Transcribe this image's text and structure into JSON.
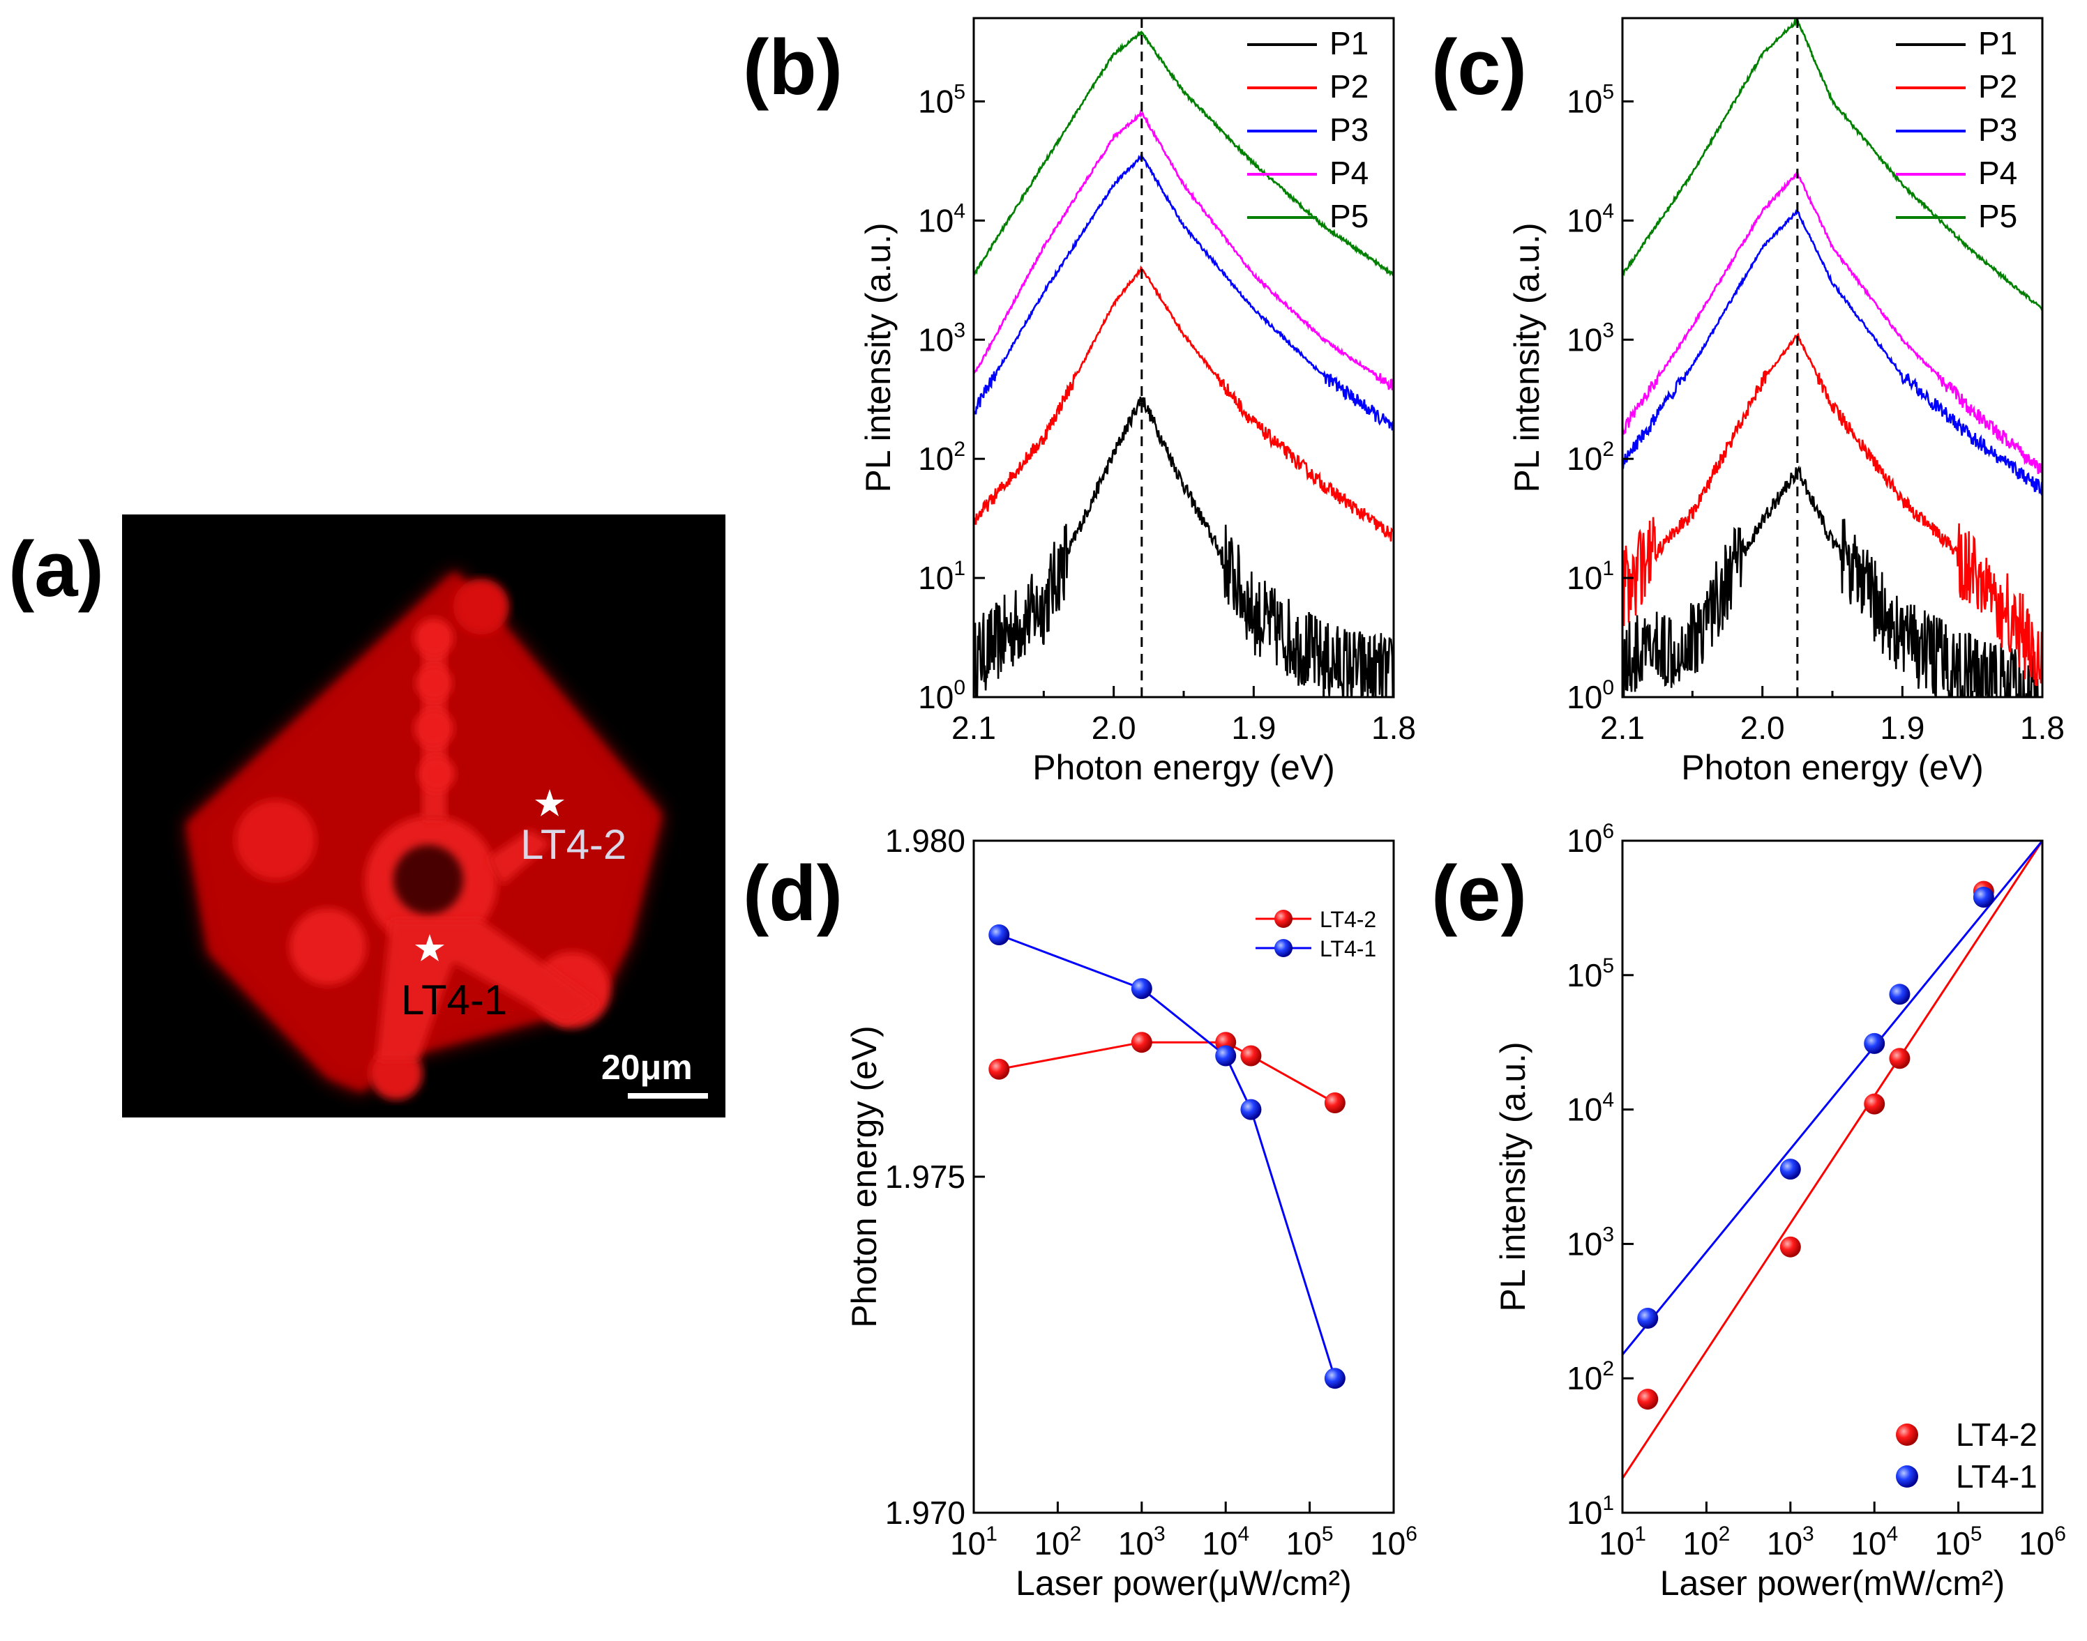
{
  "chart_data": [
    {
      "panel": "(a)",
      "type": "other",
      "description_labels": {
        "point_1": "LT4-2",
        "point_2": "LT4-1",
        "scale_bar": "20μm"
      },
      "colors": {
        "background": "#000000",
        "flake": "#cc0000"
      }
    },
    {
      "panel": "(b)",
      "type": "line",
      "xlabel": "Photon energy (eV)",
      "ylabel": "PL intensity (a.u.)",
      "xlim": [
        2.1,
        1.8
      ],
      "ylim": [
        1,
        500000
      ],
      "yscale": "log",
      "x_ticks": [
        "2.1",
        "2.0",
        "1.9",
        "1.8"
      ],
      "peak_marker": 1.98,
      "legend": [
        "P1",
        "P2",
        "P3",
        "P4",
        "P5"
      ],
      "series": [
        {
          "name": "P1",
          "color": "#000000",
          "peak_x": 1.98,
          "x": [
            2.1,
            2.05,
            2.0,
            1.98,
            1.95,
            1.9,
            1.85,
            1.8
          ],
          "values": [
            2,
            6,
            110,
            330,
            60,
            5,
            2,
            1.5
          ]
        },
        {
          "name": "P2",
          "color": "#ff0000",
          "peak_x": 1.98,
          "x": [
            2.1,
            2.05,
            2.0,
            1.98,
            1.95,
            1.9,
            1.85,
            1.8
          ],
          "values": [
            30,
            150,
            2000,
            4000,
            1100,
            200,
            60,
            22
          ]
        },
        {
          "name": "P3",
          "color": "#0000ff",
          "peak_x": 1.98,
          "x": [
            2.1,
            2.05,
            2.0,
            1.98,
            1.95,
            1.9,
            1.85,
            1.8
          ],
          "values": [
            250,
            2500,
            20000,
            35000,
            9000,
            1800,
            500,
            180
          ]
        },
        {
          "name": "P4",
          "color": "#ff00ff",
          "peak_x": 1.98,
          "x": [
            2.1,
            2.05,
            2.0,
            1.98,
            1.95,
            1.9,
            1.85,
            1.8
          ],
          "values": [
            500,
            6000,
            50000,
            80000,
            20000,
            3500,
            1000,
            400
          ]
        },
        {
          "name": "P5",
          "color": "#008000",
          "peak_x": 1.98,
          "x": [
            2.1,
            2.05,
            2.0,
            1.98,
            1.95,
            1.9,
            1.85,
            1.8
          ],
          "values": [
            3500,
            30000,
            250000,
            380000,
            120000,
            30000,
            9000,
            3500
          ]
        }
      ]
    },
    {
      "panel": "(c)",
      "type": "line",
      "xlabel": "Photon energy (eV)",
      "ylabel": "PL intensity (a.u.)",
      "xlim": [
        2.1,
        1.8
      ],
      "ylim": [
        1,
        500000
      ],
      "yscale": "log",
      "x_ticks": [
        "2.1",
        "2.0",
        "1.9",
        "1.8"
      ],
      "peak_marker": 1.975,
      "legend": [
        "P1",
        "P2",
        "P3",
        "P4",
        "P5"
      ],
      "series": [
        {
          "name": "P1",
          "color": "#000000",
          "peak_x": 1.975,
          "x": [
            2.1,
            2.05,
            2.0,
            1.975,
            1.95,
            1.9,
            1.85,
            1.8
          ],
          "values": [
            2,
            3,
            30,
            80,
            20,
            3,
            1.5,
            1
          ]
        },
        {
          "name": "P2",
          "color": "#ff0000",
          "peak_x": 1.975,
          "x": [
            2.1,
            2.05,
            2.0,
            1.975,
            1.95,
            1.9,
            1.85,
            1.8
          ],
          "values": [
            8,
            35,
            450,
            1100,
            280,
            45,
            12,
            2
          ]
        },
        {
          "name": "P3",
          "color": "#0000ff",
          "peak_x": 1.975,
          "x": [
            2.1,
            2.05,
            2.0,
            1.975,
            1.95,
            1.9,
            1.85,
            1.8
          ],
          "values": [
            90,
            600,
            6000,
            12000,
            3000,
            500,
            150,
            55
          ]
        },
        {
          "name": "P4",
          "color": "#ff00ff",
          "peak_x": 1.975,
          "x": [
            2.1,
            2.05,
            2.0,
            1.975,
            1.95,
            1.9,
            1.85,
            1.8
          ],
          "values": [
            170,
            1300,
            12000,
            25000,
            6000,
            1000,
            250,
            80
          ]
        },
        {
          "name": "P5",
          "color": "#008000",
          "peak_x": 1.975,
          "x": [
            2.1,
            2.05,
            2.0,
            1.975,
            1.95,
            1.9,
            1.85,
            1.8
          ],
          "values": [
            3500,
            25000,
            250000,
            480000,
            100000,
            20000,
            5500,
            1800
          ]
        }
      ]
    },
    {
      "panel": "(d)",
      "type": "scatter",
      "xlabel": "Laser power(μW/cm²)",
      "ylabel": "Photon energy (eV)",
      "xscale": "log",
      "xlim": [
        10,
        1000000
      ],
      "ylim": [
        1.97,
        1.98
      ],
      "y_ticks": [
        "1.970",
        "1.975",
        "1.980"
      ],
      "x_tick_exps": [
        "1",
        "2",
        "3",
        "4",
        "5",
        "6"
      ],
      "legend": [
        "LT4-2",
        "LT4-1"
      ],
      "series": [
        {
          "name": "LT4-2",
          "color": "#ff0000",
          "x": [
            20,
            1000,
            10000,
            20000,
            200000
          ],
          "values": [
            1.9766,
            1.977,
            1.977,
            1.9768,
            1.9761
          ]
        },
        {
          "name": "LT4-1",
          "color": "#0000ff",
          "x": [
            20,
            1000,
            10000,
            20000,
            200000
          ],
          "values": [
            1.9786,
            1.9778,
            1.9768,
            1.976,
            1.972
          ]
        }
      ]
    },
    {
      "panel": "(e)",
      "type": "scatter",
      "xlabel": "Laser power(mW/cm²)",
      "ylabel": "PL intensity (a.u.)",
      "xscale": "log",
      "yscale": "log",
      "xlim": [
        10,
        1000000
      ],
      "ylim": [
        10,
        1000000
      ],
      "x_tick_exps": [
        "1",
        "2",
        "3",
        "4",
        "5",
        "6"
      ],
      "y_tick_exps": [
        "1",
        "2",
        "3",
        "4",
        "5",
        "6"
      ],
      "legend": [
        "LT4-2",
        "LT4-1"
      ],
      "series": [
        {
          "name": "LT4-2",
          "color": "#ff0000",
          "x": [
            20,
            1000,
            10000,
            20000,
            200000
          ],
          "values": [
            70,
            950,
            11000,
            24000,
            420000
          ],
          "fit_line": [
            [
              10,
              18
            ],
            [
              1000000,
              1000000
            ]
          ]
        },
        {
          "name": "LT4-1",
          "color": "#0000ff",
          "x": [
            20,
            1000,
            10000,
            20000,
            200000
          ],
          "values": [
            280,
            3600,
            31000,
            72000,
            380000
          ],
          "fit_line": [
            [
              10,
              150
            ],
            [
              1000000,
              1000000
            ]
          ]
        }
      ]
    }
  ],
  "panel_labels": [
    "(a)",
    "(b)",
    "(c)",
    "(d)",
    "(e)"
  ],
  "tick_base": "10"
}
